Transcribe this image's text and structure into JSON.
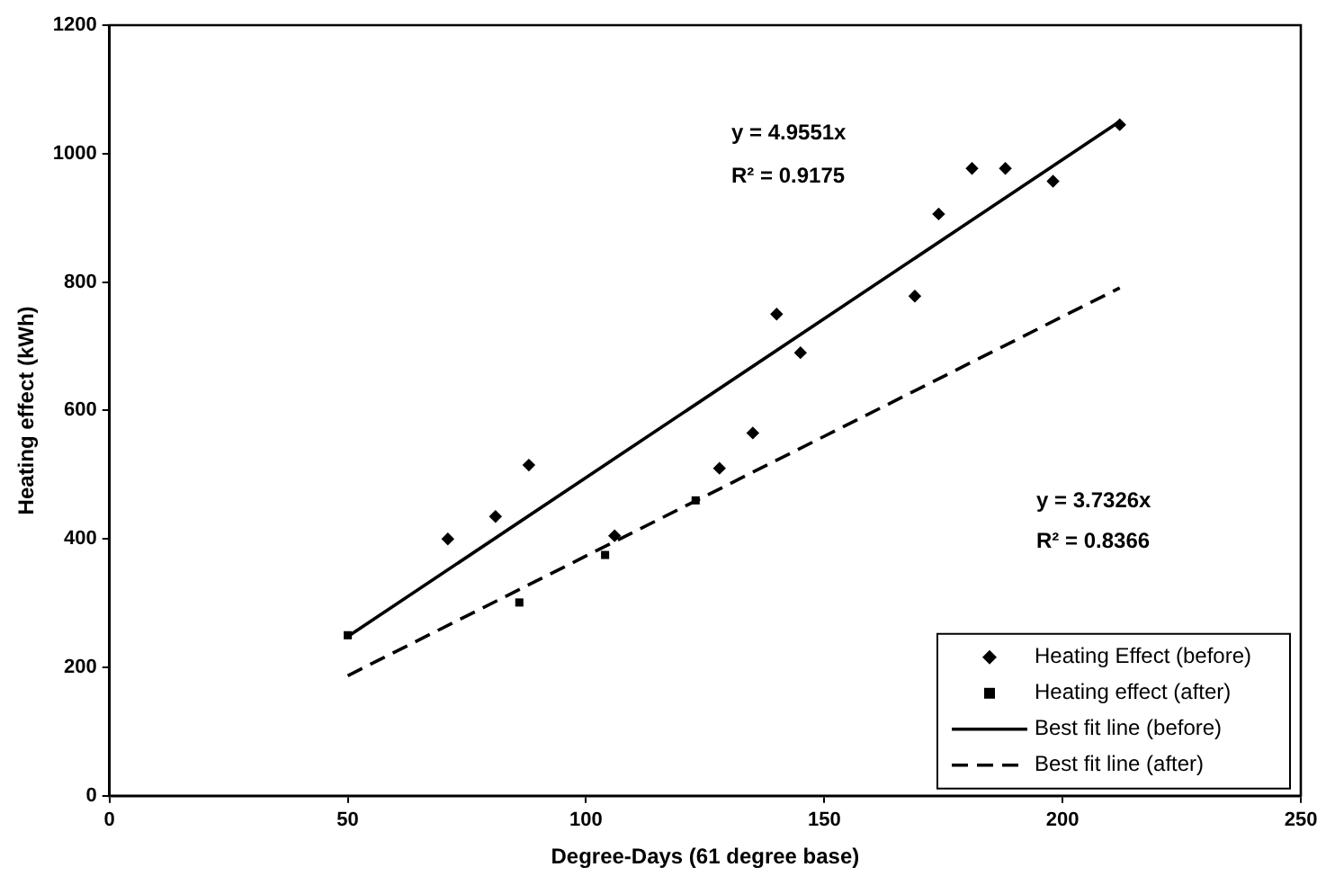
{
  "chart_data": {
    "type": "scatter",
    "xlabel": "Degree-Days (61 degree base)",
    "ylabel": "Heating effect (kWh)",
    "xlim": [
      0,
      250
    ],
    "xticks": [
      0,
      50,
      100,
      150,
      200,
      250
    ],
    "ylim": [
      0,
      1200
    ],
    "yticks": [
      0,
      200,
      400,
      600,
      800,
      1000,
      1200
    ],
    "legend": "bottom right",
    "series": [
      {
        "name": "Heating Effect (before)",
        "marker": "diamond",
        "color": "#000000",
        "x": [
          71,
          81,
          88,
          106,
          128,
          135,
          140,
          145,
          169,
          174,
          181,
          188,
          198,
          212
        ],
        "values": [
          400,
          435,
          515,
          405,
          510,
          565,
          750,
          690,
          778,
          906,
          977,
          977,
          957,
          1045
        ]
      },
      {
        "name": "Heating effect (after)",
        "marker": "square",
        "color": "#000000",
        "x": [
          50,
          86,
          104,
          123
        ],
        "values": [
          250,
          301,
          375,
          460
        ]
      },
      {
        "name": "Best fit line (before)",
        "type": "line",
        "marker": "none",
        "line_style": "solid",
        "color": "#000000",
        "x": [
          50,
          212
        ],
        "values": [
          248,
          1050
        ]
      },
      {
        "name": "Best fit line (after)",
        "type": "line",
        "marker": "none",
        "line_style": "dashed",
        "color": "#000000",
        "x": [
          50,
          212
        ],
        "values": [
          187,
          791
        ]
      }
    ],
    "annotations": [
      "y = 4.9551x",
      "R² = 0.9175",
      "y = 3.7326x",
      "R² = 0.8366"
    ]
  }
}
